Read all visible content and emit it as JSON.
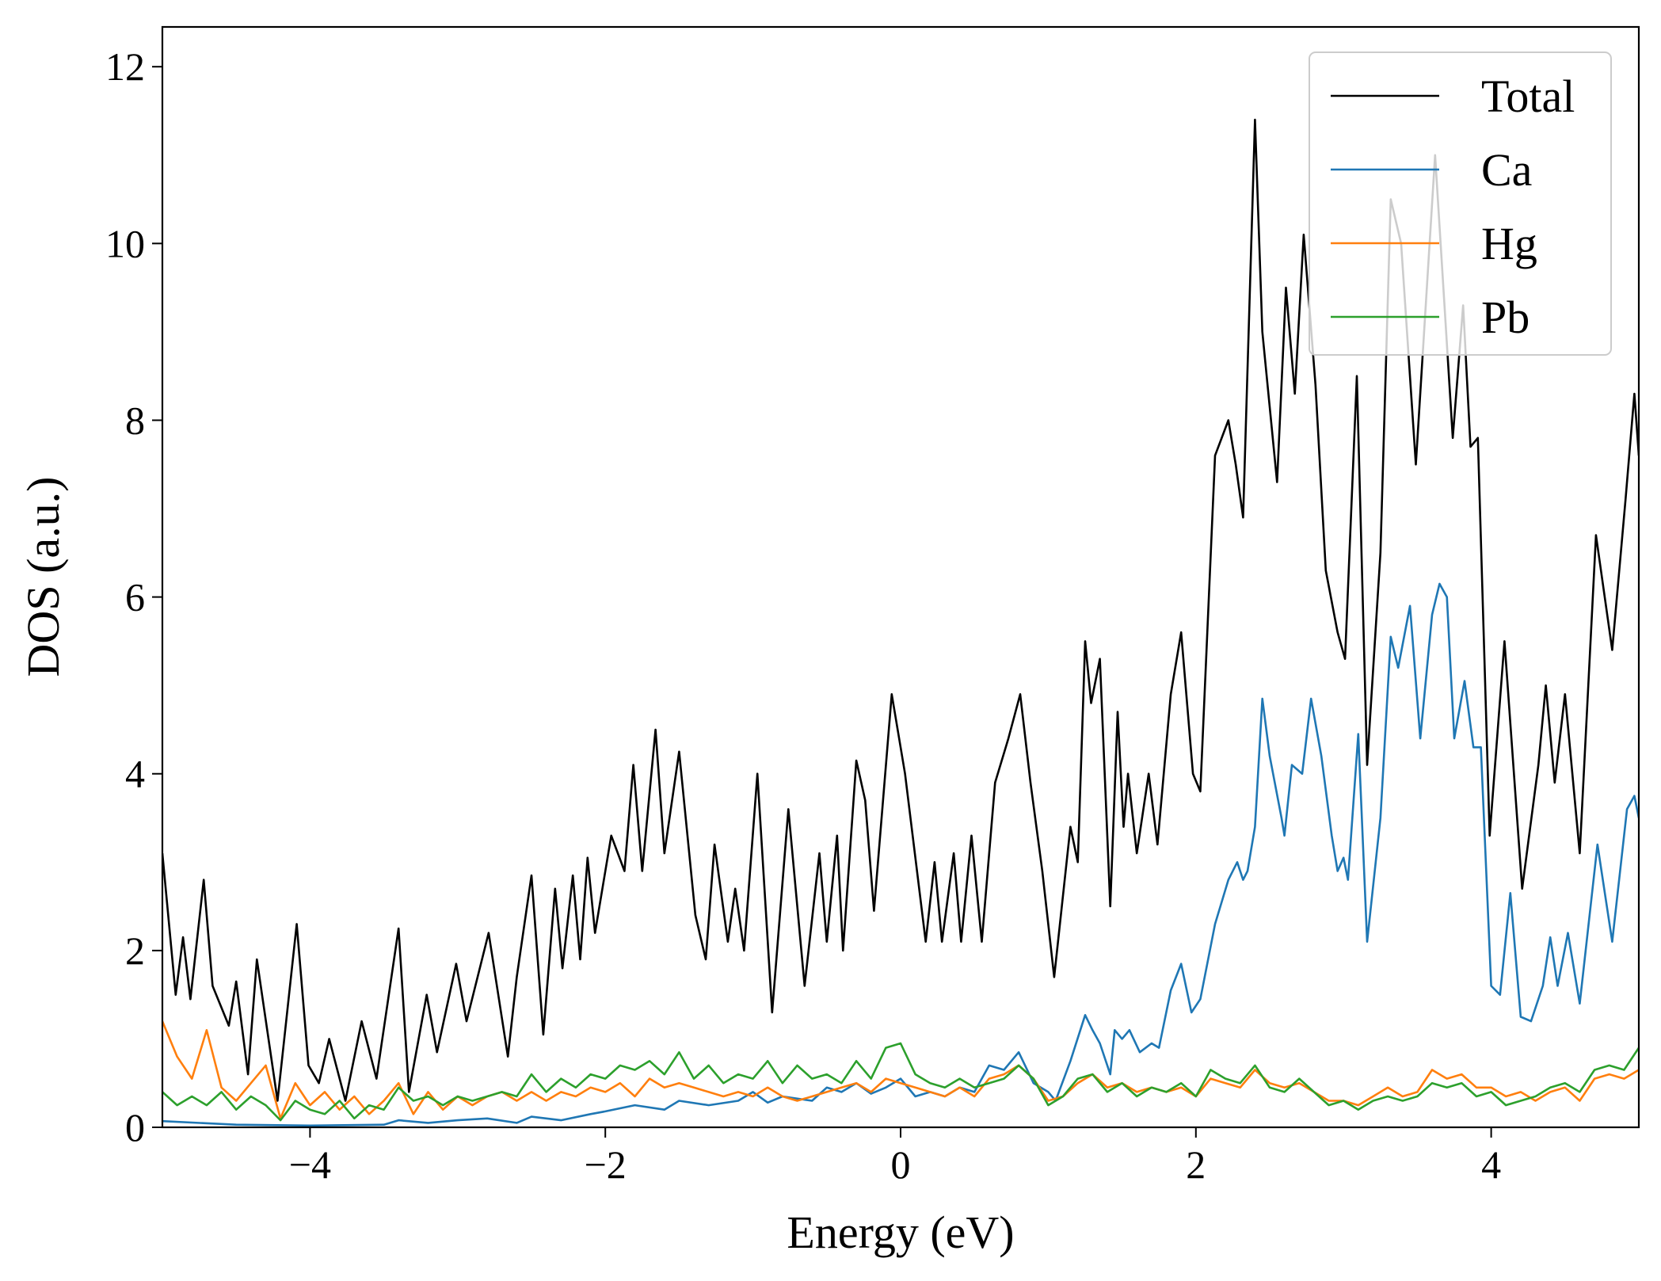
{
  "chart_data": {
    "type": "line",
    "xlabel": "Energy (eV)",
    "ylabel": "DOS (a.u.)",
    "xlim": [
      -5,
      5
    ],
    "ylim": [
      0,
      12.45
    ],
    "xticks": [
      {
        "value": -4,
        "label": "−4"
      },
      {
        "value": -2,
        "label": "−2"
      },
      0,
      2,
      4
    ],
    "yticks": [
      0,
      2,
      4,
      6,
      8,
      10,
      12
    ],
    "legend": "upper right",
    "x": [
      -5.0,
      -4.9,
      -4.8,
      -4.7,
      -4.6,
      -4.5,
      -4.4,
      -4.3,
      -4.2,
      -4.1,
      -4.0,
      -3.9,
      -3.8,
      -3.7,
      -3.6,
      -3.5,
      -3.4,
      -3.3,
      -3.2,
      -3.1,
      -3.0,
      -2.9,
      -2.8,
      -2.7,
      -2.6,
      -2.5,
      -2.4,
      -2.3,
      -2.2,
      -2.1,
      -2.0,
      -1.9,
      -1.8,
      -1.7,
      -1.6,
      -1.5,
      -1.4,
      -1.3,
      -1.2,
      -1.1,
      -1.0,
      -0.9,
      -0.8,
      -0.7,
      -0.6,
      -0.5,
      -0.4,
      -0.3,
      -0.2,
      -0.1,
      0.0,
      0.1,
      0.2,
      0.3,
      0.4,
      0.5,
      0.6,
      0.7,
      0.8,
      0.9,
      1.0,
      1.1,
      1.2,
      1.3,
      1.4,
      1.5,
      1.6,
      1.7,
      1.8,
      1.9,
      2.0,
      2.1,
      2.2,
      2.3,
      2.4,
      2.5,
      2.6,
      2.7,
      2.8,
      2.9,
      3.0,
      3.1,
      3.2,
      3.3,
      3.4,
      3.5,
      3.6,
      3.7,
      3.8,
      3.9,
      4.0,
      4.1,
      4.2,
      4.3,
      4.4,
      4.5,
      4.6,
      4.7,
      4.8,
      4.9,
      5.0
    ],
    "series": [
      {
        "name": "Total",
        "color": "#000000",
        "x": [
          -5.0,
          -4.91,
          -4.86,
          -4.81,
          -4.72,
          -4.66,
          -4.55,
          -4.5,
          -4.42,
          -4.36,
          -4.22,
          -4.09,
          -4.01,
          -3.94,
          -3.87,
          -3.76,
          -3.65,
          -3.55,
          -3.4,
          -3.33,
          -3.21,
          -3.14,
          -3.01,
          -2.94,
          -2.79,
          -2.66,
          -2.6,
          -2.5,
          -2.42,
          -2.34,
          -2.29,
          -2.22,
          -2.17,
          -2.12,
          -2.07,
          -1.96,
          -1.87,
          -1.81,
          -1.75,
          -1.66,
          -1.6,
          -1.5,
          -1.39,
          -1.32,
          -1.26,
          -1.17,
          -1.12,
          -1.06,
          -0.97,
          -0.87,
          -0.76,
          -0.65,
          -0.55,
          -0.5,
          -0.43,
          -0.39,
          -0.3,
          -0.24,
          -0.18,
          -0.06,
          0.03,
          0.17,
          0.23,
          0.28,
          0.36,
          0.41,
          0.48,
          0.55,
          0.64,
          0.73,
          0.81,
          0.88,
          0.96,
          1.04,
          1.15,
          1.2,
          1.25,
          1.29,
          1.35,
          1.42,
          1.47,
          1.51,
          1.54,
          1.6,
          1.68,
          1.74,
          1.83,
          1.9,
          1.98,
          2.03,
          2.13,
          2.22,
          2.27,
          2.32,
          2.4,
          2.45,
          2.55,
          2.61,
          2.67,
          2.73,
          2.81,
          2.88,
          2.96,
          3.01,
          3.09,
          3.16,
          3.25,
          3.32,
          3.39,
          3.49,
          3.62,
          3.74,
          3.81,
          3.86,
          3.91,
          3.99,
          4.09,
          4.21,
          4.32,
          4.37,
          4.43,
          4.5,
          4.6,
          4.71,
          4.82,
          4.91,
          4.97,
          5.0
        ],
        "values": [
          3.1,
          1.5,
          2.15,
          1.45,
          2.8,
          1.6,
          1.15,
          1.65,
          0.6,
          1.9,
          0.3,
          2.3,
          0.7,
          0.5,
          1.0,
          0.3,
          1.2,
          0.55,
          2.25,
          0.4,
          1.5,
          0.85,
          1.85,
          1.2,
          2.2,
          0.8,
          1.7,
          2.85,
          1.05,
          2.7,
          1.8,
          2.85,
          1.9,
          3.05,
          2.2,
          3.3,
          2.9,
          4.1,
          2.9,
          4.5,
          3.1,
          4.25,
          2.4,
          1.9,
          3.2,
          2.1,
          2.7,
          2.0,
          4.0,
          1.3,
          3.6,
          1.6,
          3.1,
          2.1,
          3.3,
          2.0,
          4.15,
          3.7,
          2.45,
          4.9,
          4.0,
          2.1,
          3.0,
          2.1,
          3.1,
          2.1,
          3.3,
          2.1,
          3.9,
          4.4,
          4.9,
          3.9,
          2.9,
          1.7,
          3.4,
          3.0,
          5.5,
          4.8,
          5.3,
          2.5,
          4.7,
          3.4,
          4.0,
          3.1,
          4.0,
          3.2,
          4.9,
          5.6,
          4.0,
          3.8,
          7.6,
          8.0,
          7.5,
          6.9,
          11.4,
          9.0,
          7.3,
          9.5,
          8.3,
          10.1,
          8.4,
          6.3,
          5.6,
          5.3,
          8.5,
          4.1,
          6.5,
          10.5,
          10.0,
          7.5,
          11.0,
          7.8,
          9.3,
          7.7,
          7.8,
          3.3,
          5.5,
          2.7,
          4.1,
          5.0,
          3.9,
          4.9,
          3.1,
          6.7,
          5.4,
          7.1,
          8.3,
          7.6
        ]
      },
      {
        "name": "Ca",
        "color": "#1f77b4",
        "x": [
          -5.0,
          -4.5,
          -4.0,
          -3.5,
          -3.4,
          -3.2,
          -3.0,
          -2.8,
          -2.6,
          -2.5,
          -2.3,
          -2.1,
          -2.0,
          -1.8,
          -1.6,
          -1.5,
          -1.3,
          -1.1,
          -1.0,
          -0.9,
          -0.8,
          -0.6,
          -0.5,
          -0.4,
          -0.3,
          -0.2,
          -0.1,
          0.0,
          0.1,
          0.2,
          0.3,
          0.4,
          0.5,
          0.6,
          0.7,
          0.8,
          0.9,
          1.0,
          1.05,
          1.15,
          1.25,
          1.3,
          1.35,
          1.42,
          1.45,
          1.5,
          1.55,
          1.62,
          1.7,
          1.75,
          1.83,
          1.9,
          1.97,
          2.03,
          2.13,
          2.22,
          2.28,
          2.32,
          2.35,
          2.4,
          2.45,
          2.5,
          2.58,
          2.6,
          2.65,
          2.72,
          2.78,
          2.85,
          2.92,
          2.96,
          3.0,
          3.03,
          3.1,
          3.16,
          3.25,
          3.32,
          3.37,
          3.45,
          3.52,
          3.6,
          3.65,
          3.7,
          3.75,
          3.82,
          3.88,
          3.93,
          4.0,
          4.06,
          4.13,
          4.2,
          4.27,
          4.35,
          4.4,
          4.45,
          4.52,
          4.6,
          4.72,
          4.82,
          4.92,
          4.97,
          5.0
        ],
        "values": [
          0.07,
          0.03,
          0.02,
          0.03,
          0.08,
          0.05,
          0.08,
          0.1,
          0.05,
          0.12,
          0.08,
          0.15,
          0.18,
          0.25,
          0.2,
          0.3,
          0.25,
          0.3,
          0.4,
          0.28,
          0.35,
          0.3,
          0.45,
          0.4,
          0.5,
          0.38,
          0.45,
          0.55,
          0.35,
          0.4,
          0.35,
          0.45,
          0.4,
          0.7,
          0.65,
          0.85,
          0.5,
          0.4,
          0.3,
          0.75,
          1.27,
          1.1,
          0.95,
          0.6,
          1.1,
          1.0,
          1.1,
          0.85,
          0.95,
          0.9,
          1.55,
          1.85,
          1.3,
          1.45,
          2.3,
          2.8,
          3.0,
          2.8,
          2.9,
          3.4,
          4.85,
          4.2,
          3.5,
          3.3,
          4.1,
          4.0,
          4.85,
          4.2,
          3.3,
          2.9,
          3.05,
          2.8,
          4.45,
          2.1,
          3.5,
          5.55,
          5.2,
          5.9,
          4.4,
          5.8,
          6.15,
          6.0,
          4.4,
          5.05,
          4.3,
          4.3,
          1.6,
          1.5,
          2.65,
          1.25,
          1.2,
          1.6,
          2.15,
          1.6,
          2.2,
          1.4,
          3.2,
          2.1,
          3.6,
          3.75,
          3.5
        ]
      },
      {
        "name": "Hg",
        "color": "#ff7f0e",
        "values": [
          1.2,
          0.8,
          0.55,
          1.1,
          0.45,
          0.3,
          0.5,
          0.7,
          0.1,
          0.5,
          0.25,
          0.4,
          0.2,
          0.35,
          0.15,
          0.3,
          0.5,
          0.15,
          0.4,
          0.2,
          0.35,
          0.25,
          0.35,
          0.4,
          0.3,
          0.4,
          0.3,
          0.4,
          0.35,
          0.45,
          0.4,
          0.5,
          0.35,
          0.55,
          0.45,
          0.5,
          0.45,
          0.4,
          0.35,
          0.4,
          0.35,
          0.45,
          0.35,
          0.3,
          0.35,
          0.4,
          0.45,
          0.5,
          0.4,
          0.55,
          0.5,
          0.45,
          0.4,
          0.35,
          0.45,
          0.35,
          0.55,
          0.6,
          0.7,
          0.55,
          0.3,
          0.35,
          0.5,
          0.6,
          0.45,
          0.5,
          0.4,
          0.45,
          0.4,
          0.45,
          0.35,
          0.55,
          0.5,
          0.45,
          0.65,
          0.5,
          0.45,
          0.5,
          0.4,
          0.3,
          0.3,
          0.25,
          0.35,
          0.45,
          0.35,
          0.4,
          0.65,
          0.55,
          0.6,
          0.45,
          0.45,
          0.35,
          0.4,
          0.3,
          0.4,
          0.45,
          0.3,
          0.55,
          0.6,
          0.55,
          0.65
        ]
      },
      {
        "name": "Pb",
        "color": "#2ca02c",
        "values": [
          0.4,
          0.25,
          0.35,
          0.25,
          0.4,
          0.2,
          0.35,
          0.25,
          0.08,
          0.3,
          0.2,
          0.15,
          0.3,
          0.1,
          0.25,
          0.2,
          0.45,
          0.3,
          0.35,
          0.25,
          0.35,
          0.3,
          0.35,
          0.4,
          0.35,
          0.6,
          0.4,
          0.55,
          0.45,
          0.6,
          0.55,
          0.7,
          0.65,
          0.75,
          0.6,
          0.85,
          0.55,
          0.7,
          0.5,
          0.6,
          0.55,
          0.75,
          0.5,
          0.7,
          0.55,
          0.6,
          0.5,
          0.75,
          0.55,
          0.9,
          0.95,
          0.6,
          0.5,
          0.45,
          0.55,
          0.45,
          0.5,
          0.55,
          0.7,
          0.55,
          0.25,
          0.35,
          0.55,
          0.6,
          0.4,
          0.5,
          0.35,
          0.45,
          0.4,
          0.5,
          0.35,
          0.65,
          0.55,
          0.5,
          0.7,
          0.45,
          0.4,
          0.55,
          0.4,
          0.25,
          0.3,
          0.2,
          0.3,
          0.35,
          0.3,
          0.35,
          0.5,
          0.45,
          0.5,
          0.35,
          0.4,
          0.25,
          0.3,
          0.35,
          0.45,
          0.5,
          0.4,
          0.65,
          0.7,
          0.65,
          0.9
        ]
      }
    ]
  }
}
